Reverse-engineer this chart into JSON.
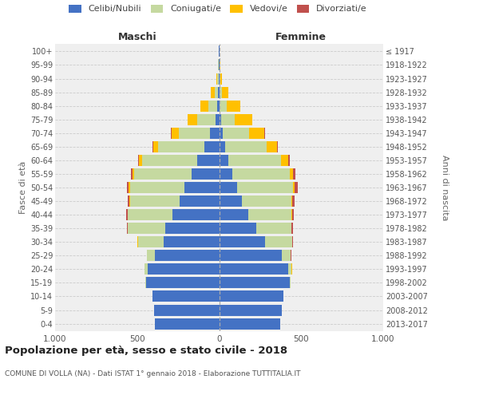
{
  "age_groups": [
    "0-4",
    "5-9",
    "10-14",
    "15-19",
    "20-24",
    "25-29",
    "30-34",
    "35-39",
    "40-44",
    "45-49",
    "50-54",
    "55-59",
    "60-64",
    "65-69",
    "70-74",
    "75-79",
    "80-84",
    "85-89",
    "90-94",
    "95-99",
    "100+"
  ],
  "birth_years": [
    "2013-2017",
    "2008-2012",
    "2003-2007",
    "1998-2002",
    "1993-1997",
    "1988-1992",
    "1983-1987",
    "1978-1982",
    "1973-1977",
    "1968-1972",
    "1963-1967",
    "1958-1962",
    "1953-1957",
    "1948-1952",
    "1943-1947",
    "1938-1942",
    "1933-1937",
    "1928-1932",
    "1923-1927",
    "1918-1922",
    "≤ 1917"
  ],
  "maschi": {
    "celibi": [
      390,
      395,
      405,
      445,
      435,
      390,
      340,
      330,
      285,
      240,
      210,
      170,
      135,
      90,
      55,
      20,
      10,
      5,
      4,
      3,
      2
    ],
    "coniugati": [
      0,
      1,
      2,
      4,
      18,
      48,
      155,
      225,
      272,
      305,
      335,
      350,
      335,
      280,
      190,
      115,
      58,
      22,
      7,
      3,
      1
    ],
    "vedovi": [
      0,
      0,
      0,
      0,
      1,
      1,
      2,
      2,
      2,
      3,
      5,
      8,
      18,
      30,
      45,
      55,
      45,
      22,
      6,
      2,
      0
    ],
    "divorziati": [
      0,
      0,
      0,
      0,
      1,
      2,
      4,
      7,
      9,
      11,
      14,
      11,
      7,
      4,
      2,
      1,
      0,
      0,
      0,
      0,
      0
    ]
  },
  "femmine": {
    "nubili": [
      372,
      382,
      392,
      432,
      420,
      380,
      278,
      228,
      178,
      138,
      108,
      78,
      58,
      38,
      22,
      10,
      4,
      3,
      2,
      1,
      1
    ],
    "coniugate": [
      0,
      1,
      2,
      4,
      22,
      55,
      165,
      212,
      262,
      302,
      342,
      352,
      320,
      250,
      162,
      85,
      42,
      12,
      4,
      2,
      0
    ],
    "vedove": [
      0,
      0,
      0,
      0,
      1,
      2,
      2,
      2,
      3,
      5,
      8,
      18,
      42,
      65,
      90,
      105,
      85,
      42,
      13,
      3,
      1
    ],
    "divorziate": [
      0,
      0,
      0,
      0,
      1,
      2,
      4,
      9,
      13,
      17,
      21,
      17,
      11,
      7,
      4,
      2,
      0,
      0,
      0,
      0,
      0
    ]
  },
  "color_celibi": "#4472c4",
  "color_coniugati": "#c5d9a0",
  "color_vedovi": "#ffc000",
  "color_divorziati": "#c0504d",
  "bg_color": "#efefef",
  "title": "Popolazione per età, sesso e stato civile - 2018",
  "subtitle": "COMUNE DI VOLLA (NA) - Dati ISTAT 1° gennaio 2018 - Elaborazione TUTTITALIA.IT",
  "xlabel_left": "Maschi",
  "xlabel_right": "Femmine",
  "ylabel_left": "Fasce di età",
  "ylabel_right": "Anni di nascita",
  "xlim": 1000
}
